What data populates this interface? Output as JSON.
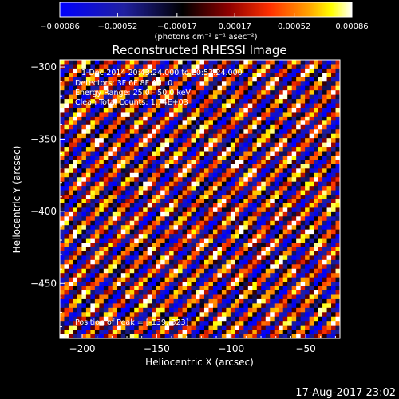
{
  "chart_data": {
    "type": "heatmap",
    "title": "Reconstructed RHESSI Image",
    "xlabel": "Heliocentric X (arcsec)",
    "ylabel": "Heliocentric Y (arcsec)",
    "xlim": [
      -215,
      -27
    ],
    "ylim": [
      -488,
      -295
    ],
    "xticks": [
      -200,
      -150,
      -100,
      -50
    ],
    "yticks": [
      -300,
      -350,
      -400,
      -450
    ],
    "xtick_labels": [
      "−200",
      "−150",
      "−100",
      "−50"
    ],
    "ytick_labels": [
      "−300",
      "−350",
      "−400",
      "−450"
    ],
    "colorbar": {
      "range": [
        -0.00086,
        0.00086
      ],
      "ticks": [
        "−0.00086",
        "−0.00052",
        "−0.00017",
        "0.00017",
        "0.00052",
        "0.00086"
      ],
      "unit_label": "(photons cm⁻² s⁻¹ asec⁻²)",
      "colormap": "blue-black-red-yellow-white"
    },
    "annotations": [
      "1-Dec-2014 20:43:24.000 to 20:53:24.000",
      "Detectors: 3F 6F 8F Att: 0",
      "Energy Range: 25.0 - 50.0 keV",
      "Clean    Total Counts: 1.74E+03"
    ],
    "peak_label": "Position of Peak = [-139,-323]",
    "pattern": "diagonal stripe (sidelobe) pattern, no clear source"
  },
  "footer_timestamp": "17-Aug-2017 23:02"
}
